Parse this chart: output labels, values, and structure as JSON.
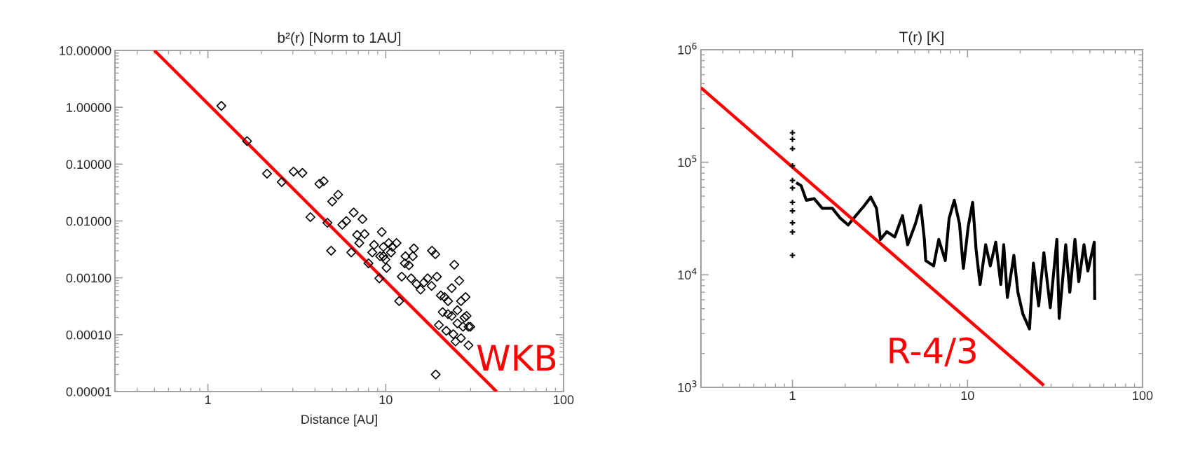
{
  "chart_data": [
    {
      "type": "scatter",
      "title": "b²(r) [Norm to 1AU]",
      "xlabel": "Distance [AU]",
      "log": "xy",
      "xlim": [
        0.3,
        100
      ],
      "xticks": [
        1,
        10,
        100
      ],
      "ylim": [
        1e-05,
        10
      ],
      "yticks": [
        {
          "value": 10,
          "label": "10.00000"
        },
        {
          "value": 1,
          "label": "1.00000"
        },
        {
          "value": 0.1,
          "label": "0.10000"
        },
        {
          "value": 0.01,
          "label": "0.01000"
        },
        {
          "value": 0.001,
          "label": "0.00100"
        },
        {
          "value": 0.0001,
          "label": "0.00010"
        },
        {
          "value": 1e-05,
          "label": "0.00001"
        }
      ],
      "series": [
        {
          "marker": "diamond",
          "color": "#000000",
          "x": [
            1.19,
            1.66,
            2.15,
            2.6,
            3.03,
            3.4,
            4.23,
            4.48,
            5.0,
            5.4,
            3.77,
            4.7,
            4.93,
            5.7,
            6.0,
            6.6,
            7.4,
            6.4,
            6.9,
            7.6,
            7.1,
            8.0,
            8.4,
            9.2,
            9.5,
            10.1,
            9.7,
            10.4,
            10.9,
            11.5,
            10.7,
            9.3,
            9.95,
            11.9,
            12.3,
            12.9,
            14.4,
            13.5,
            13.9,
            14.9,
            15.7,
            16.4,
            17.2,
            18.1,
            19.4,
            18.2,
            19.0,
            19.1,
            19.9,
            20.4,
            20.9,
            21.9,
            22.4,
            23.5,
            24.3,
            25.9,
            24.7,
            23.5,
            25.3,
            26.5,
            28.1,
            29.2,
            28.5,
            29.9,
            27.2,
            22.4,
            21.4,
            25.3,
            27.7,
            29.2,
            26.5,
            24.0,
            9.7,
            8.6,
            12.8,
            14.2
          ],
          "values": [
            1.06,
            0.254,
            0.068,
            0.0485,
            0.074,
            0.07,
            0.045,
            0.05,
            0.022,
            0.029,
            0.0117,
            0.0093,
            0.003,
            0.0086,
            0.01,
            0.0141,
            0.0108,
            0.0028,
            0.0057,
            0.0059,
            0.0041,
            0.0018,
            0.0028,
            0.00098,
            0.0064,
            0.0015,
            0.0035,
            0.0041,
            0.0035,
            0.0041,
            0.0028,
            0.0024,
            0.0021,
            0.00039,
            0.00105,
            0.0024,
            0.0033,
            0.00166,
            0.00098,
            0.00078,
            0.00062,
            0.00083,
            0.00098,
            0.00072,
            0.00105,
            0.003,
            0.0026,
            2e-05,
            0.000148,
            0.00049,
            0.00025,
            0.000117,
            0.00039,
            0.00066,
            0.0017,
            0.00089,
            7.6e-05,
            0.000214,
            0.000158,
            0.00039,
            0.00046,
            6.5e-05,
            0.000214,
            0.000138,
            0.000138,
            0.00023,
            0.00046,
            0.00027,
            0.0002,
            0.000138,
            8.7e-05,
            0.000102,
            0.0024,
            0.0038,
            0.0018,
            0.0024
          ]
        },
        {
          "type": "line",
          "color": "#ff0000",
          "x": [
            0.5,
            42
          ],
          "values": [
            10,
            1e-05
          ]
        }
      ],
      "annotations": [
        "WKB"
      ]
    },
    {
      "type": "scatter",
      "title": "T(r) [K]",
      "log": "xy",
      "xlim": [
        0.3,
        100
      ],
      "xticks": [
        1,
        10,
        100
      ],
      "ylim": [
        1000,
        1000000
      ],
      "yticks": [
        {
          "value": 1000,
          "label": "10$^{3}$"
        },
        {
          "value": 10000,
          "label": "10$^{4}$"
        },
        {
          "value": 100000,
          "label": "10$^{5}$"
        },
        {
          "value": 1000000,
          "label": "10$^{6}$"
        }
      ],
      "series": [
        {
          "marker": "cross",
          "color": "#000000",
          "x": [
            1,
            1,
            1,
            1,
            1,
            1,
            1,
            1,
            1,
            1,
            1
          ],
          "values": [
            183000,
            160000,
            132000,
            93000,
            69000,
            59000,
            44000,
            37000,
            29000,
            24000,
            14900
          ]
        },
        {
          "type": "line",
          "color": "#000000",
          "x": [
            1.05,
            1.12,
            1.2,
            1.33,
            1.48,
            1.69,
            1.87,
            2.08,
            2.3,
            2.55,
            2.8,
            3.02,
            3.18,
            3.46,
            3.84,
            4.25,
            4.55,
            5.04,
            5.4,
            5.67,
            5.77,
            6.4,
            6.85,
            7.46,
            7.85,
            8.4,
            9.0,
            9.47,
            10.1,
            10.7,
            11.2,
            11.8,
            12.7,
            13.5,
            14.5,
            15.5,
            16.1,
            16.9,
            18.4,
            19.4,
            20.7,
            22.6,
            23.8,
            25.5,
            27.3,
            29.7,
            32.4,
            33.4,
            36.4,
            38.4,
            41.1,
            43.2,
            46.3,
            48.7,
            53,
            53.3
          ],
          "values": [
            66000,
            62000,
            46000,
            47500,
            39000,
            39000,
            32000,
            27700,
            33500,
            40500,
            49000,
            39000,
            20600,
            24200,
            21700,
            33500,
            18500,
            28400,
            41500,
            20600,
            13400,
            12000,
            20600,
            13400,
            31700,
            46000,
            28400,
            11400,
            27000,
            44000,
            16600,
            8200,
            18500,
            12000,
            19500,
            8200,
            18500,
            6300,
            14900,
            7000,
            4500,
            3300,
            12700,
            5300,
            15700,
            5100,
            20600,
            4100,
            18500,
            7000,
            20600,
            8700,
            18500,
            10800,
            19500,
            6000
          ]
        },
        {
          "type": "line",
          "color": "#ff0000",
          "x": [
            0.3,
            27.3
          ],
          "values": [
            460000,
            1040
          ]
        }
      ],
      "annotations": [
        "R-4/3"
      ]
    }
  ]
}
